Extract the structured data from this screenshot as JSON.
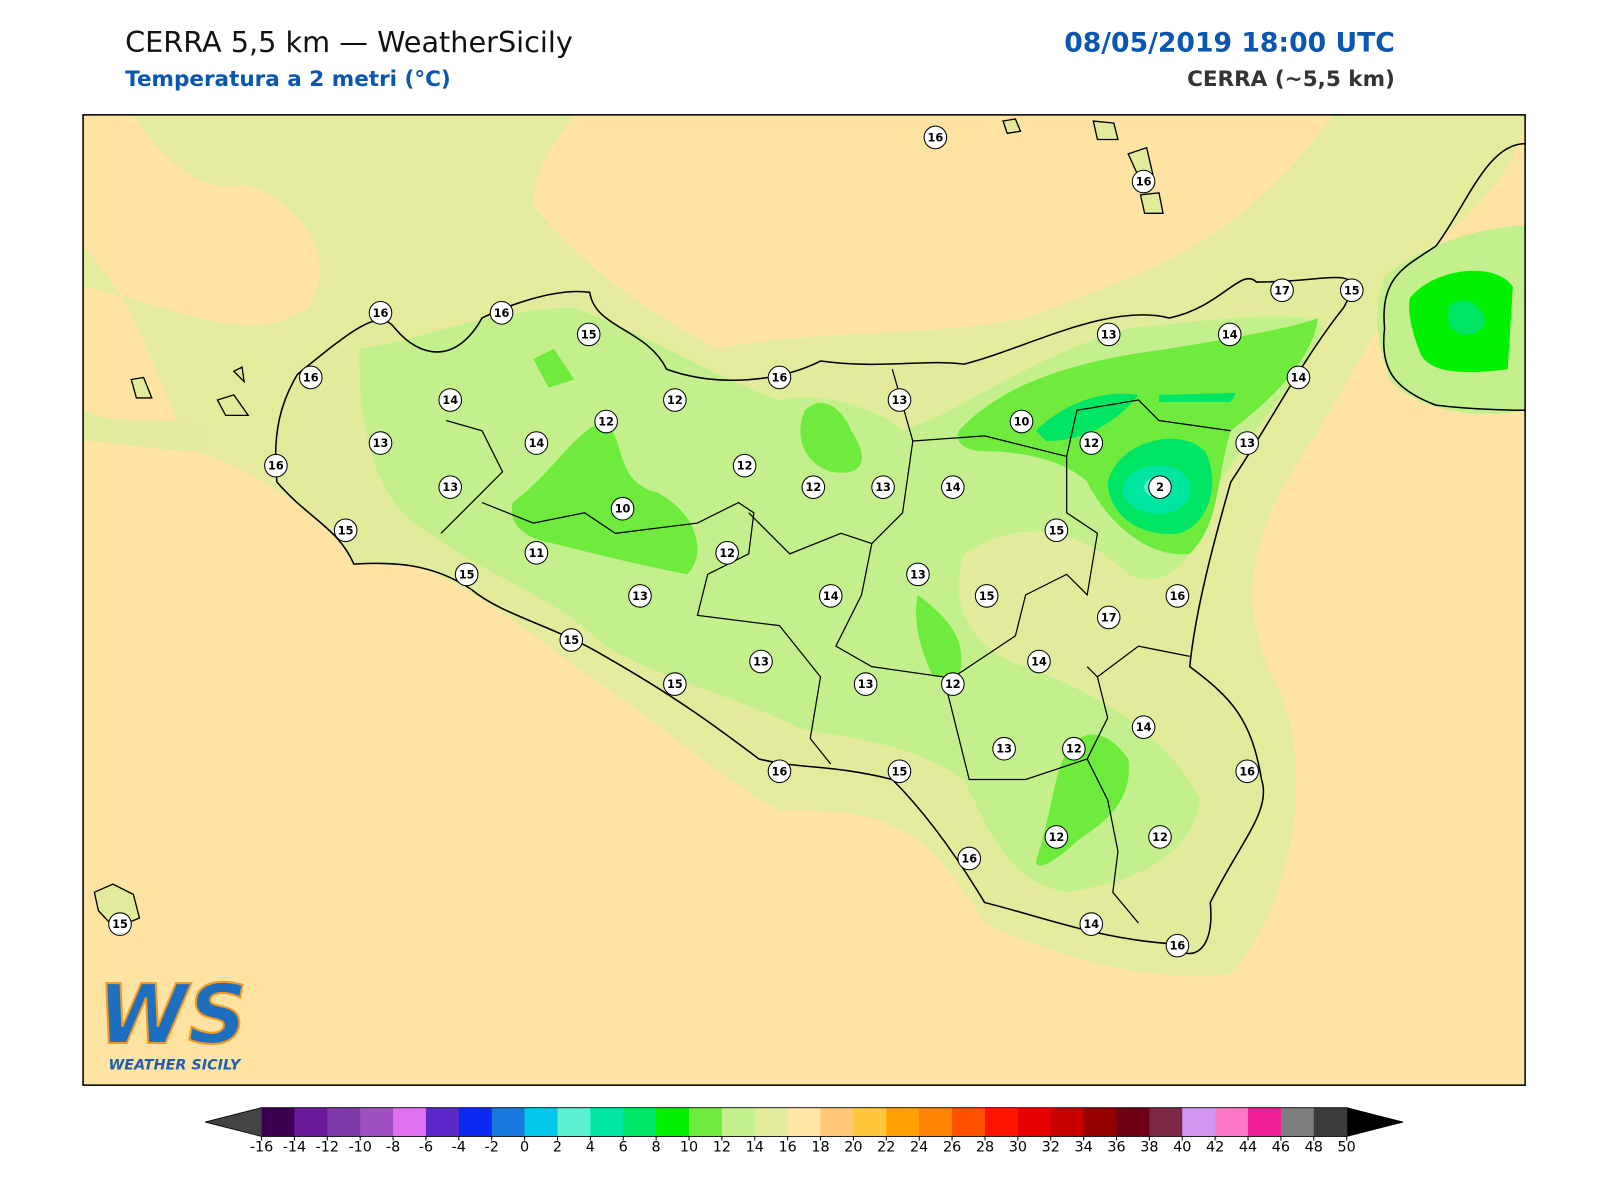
{
  "header": {
    "title": "CERRA 5,5 km — WeatherSicily",
    "subtitle": "Temperatura a 2 metri (°C)",
    "datetime": "08/05/2019 18:00 UTC",
    "model": "CERRA (~5,5 km)"
  },
  "stations": [
    16,
    16,
    16,
    16,
    15,
    17,
    15,
    16,
    14,
    12,
    16,
    13,
    13,
    14,
    14,
    12,
    10,
    13,
    14,
    12,
    13,
    16,
    12,
    12,
    13,
    14,
    2,
    13,
    10,
    15,
    15,
    11,
    12,
    15,
    13,
    13,
    14,
    15,
    16,
    17,
    15,
    14,
    13,
    15,
    13,
    12,
    14,
    13,
    12,
    16,
    15,
    16,
    12,
    12,
    16,
    15,
    14,
    16
  ],
  "colorbar": {
    "ticks": [
      -16,
      -14,
      -12,
      -10,
      -8,
      -6,
      -4,
      -2,
      0,
      2,
      4,
      6,
      8,
      10,
      12,
      14,
      16,
      18,
      20,
      22,
      24,
      26,
      28,
      30,
      32,
      34,
      36,
      38,
      40,
      42,
      44,
      46,
      48,
      50
    ],
    "colors": [
      "#3c0050",
      "#6a1a9a",
      "#7e3aa8",
      "#a050c0",
      "#e070f0",
      "#5a28c8",
      "#0a28f0",
      "#1478dc",
      "#00c8e6",
      "#5af0d2",
      "#00e6a0",
      "#00e664",
      "#00f000",
      "#6eeb3c",
      "#c3f08c",
      "#e1eb9b",
      "#ffe6a5",
      "#ffc878",
      "#ffc83c",
      "#ffa000",
      "#ff8200",
      "#ff5000",
      "#ff1400",
      "#e60000",
      "#c80000",
      "#960000",
      "#6e0014",
      "#7d2846",
      "#d296f0",
      "#ff78c8",
      "#f01e96",
      "#7d7d7d",
      "#3c3c3c"
    ],
    "under": "#444444",
    "over": "#000000"
  },
  "logo": {
    "mark": "WS",
    "name": "WEATHER SICILY"
  }
}
